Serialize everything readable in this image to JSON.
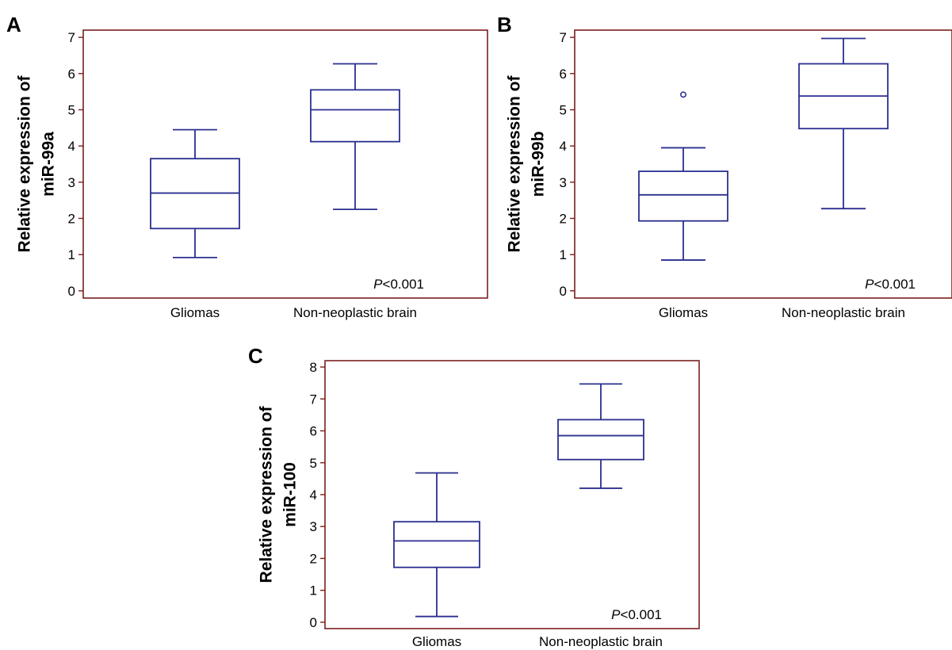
{
  "colors": {
    "frame": "#7a1f1f",
    "box": "#2b2f8f",
    "text": "#000000"
  },
  "chart_data": [
    {
      "type": "box",
      "panel": "A",
      "ylabel_line1": "Relative expression of",
      "ylabel_line2": "miR-99a",
      "categories": [
        "Gliomas",
        "Non-neoplastic brain"
      ],
      "yticks": [
        0,
        1,
        2,
        3,
        4,
        5,
        6,
        7
      ],
      "ylim": [
        -0.2,
        7.2
      ],
      "annotation_italic": "P",
      "annotation_rest": "<0.001",
      "boxes": [
        {
          "category": "Gliomas",
          "min": 0.92,
          "q1": 1.72,
          "median": 2.7,
          "q3": 3.65,
          "max": 4.45,
          "outliers": []
        },
        {
          "category": "Non-neoplastic brain",
          "min": 2.25,
          "q1": 4.12,
          "median": 5.0,
          "q3": 5.55,
          "max": 6.27,
          "outliers": []
        }
      ]
    },
    {
      "type": "box",
      "panel": "B",
      "ylabel_line1": "Relative expression of",
      "ylabel_line2": "miR-99b",
      "categories": [
        "Gliomas",
        "Non-neoplastic brain"
      ],
      "yticks": [
        0,
        1,
        2,
        3,
        4,
        5,
        6,
        7
      ],
      "ylim": [
        -0.2,
        7.2
      ],
      "annotation_italic": "P",
      "annotation_rest": "<0.001",
      "boxes": [
        {
          "category": "Gliomas",
          "min": 0.85,
          "q1": 1.93,
          "median": 2.65,
          "q3": 3.3,
          "max": 3.95,
          "outliers": [
            5.42
          ]
        },
        {
          "category": "Non-neoplastic brain",
          "min": 2.27,
          "q1": 4.48,
          "median": 5.38,
          "q3": 6.27,
          "max": 6.97,
          "outliers": []
        }
      ]
    },
    {
      "type": "box",
      "panel": "C",
      "ylabel_line1": "Relative expression of",
      "ylabel_line2": "miR-100",
      "categories": [
        "Gliomas",
        "Non-neoplastic brain"
      ],
      "yticks": [
        0,
        1,
        2,
        3,
        4,
        5,
        6,
        7,
        8
      ],
      "ylim": [
        -0.2,
        8.2
      ],
      "annotation_italic": "P",
      "annotation_rest": "<0.001",
      "boxes": [
        {
          "category": "Gliomas",
          "min": 0.18,
          "q1": 1.72,
          "median": 2.55,
          "q3": 3.15,
          "max": 4.68,
          "outliers": []
        },
        {
          "category": "Non-neoplastic brain",
          "min": 4.2,
          "q1": 5.1,
          "median": 5.85,
          "q3": 6.35,
          "max": 7.47,
          "outliers": []
        }
      ]
    }
  ]
}
